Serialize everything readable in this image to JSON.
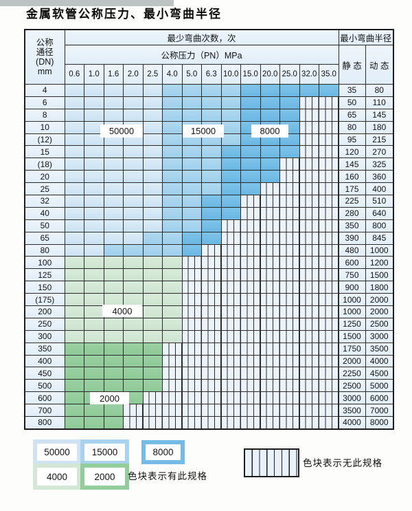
{
  "title": "金属软管公称压力、最小弯曲半径",
  "table": {
    "corner_lines": [
      "公称",
      "通径",
      "(DN)",
      "mm"
    ],
    "bend_cycles_header": "最少弯曲次数，次",
    "pressure_header": "公称压力（PN）MPa",
    "radius_header": "最小弯曲半径",
    "static_header": "静 态",
    "dynamic_header": "动 态",
    "pressures": [
      "0.6",
      "1.0",
      "1.6",
      "2.0",
      "2.5",
      "4.0",
      "5.0",
      "6.3",
      "10.0",
      "15.0",
      "20.0",
      "25.0",
      "32.0",
      "35.0"
    ],
    "rows": [
      {
        "dn": "4",
        "static": "35",
        "dynamic": "80",
        "bands": [
          [
            0,
            4,
            "c50"
          ],
          [
            5,
            8,
            "c15"
          ],
          [
            9,
            13,
            "c8"
          ]
        ],
        "hatch": null
      },
      {
        "dn": "6",
        "static": "50",
        "dynamic": "110",
        "bands": [
          [
            0,
            4,
            "c50"
          ],
          [
            5,
            8,
            "c15"
          ],
          [
            9,
            11,
            "c8"
          ]
        ],
        "hatch": [
          12,
          13
        ]
      },
      {
        "dn": "8",
        "static": "65",
        "dynamic": "145",
        "bands": [
          [
            0,
            4,
            "c50"
          ],
          [
            5,
            8,
            "c15"
          ],
          [
            9,
            11,
            "c8"
          ]
        ],
        "hatch": [
          12,
          13
        ]
      },
      {
        "dn": "10",
        "static": "80",
        "dynamic": "180",
        "bands": [
          [
            0,
            4,
            "c50"
          ],
          [
            5,
            8,
            "c15"
          ],
          [
            9,
            11,
            "c8"
          ]
        ],
        "hatch": [
          12,
          13
        ]
      },
      {
        "dn": "(12)",
        "static": "95",
        "dynamic": "215",
        "bands": [
          [
            0,
            4,
            "c50"
          ],
          [
            5,
            8,
            "c15"
          ],
          [
            9,
            11,
            "c8"
          ]
        ],
        "hatch": [
          12,
          13
        ]
      },
      {
        "dn": "15",
        "static": "120",
        "dynamic": "270",
        "bands": [
          [
            0,
            4,
            "c50"
          ],
          [
            5,
            7,
            "c15"
          ],
          [
            8,
            11,
            "c8"
          ]
        ],
        "hatch": [
          12,
          13
        ]
      },
      {
        "dn": "(18)",
        "static": "145",
        "dynamic": "325",
        "bands": [
          [
            0,
            4,
            "c50"
          ],
          [
            5,
            7,
            "c15"
          ],
          [
            8,
            10,
            "c8"
          ]
        ],
        "hatch": [
          11,
          13
        ]
      },
      {
        "dn": "20",
        "static": "160",
        "dynamic": "360",
        "bands": [
          [
            0,
            4,
            "c50"
          ],
          [
            5,
            7,
            "c15"
          ],
          [
            8,
            10,
            "c8"
          ]
        ],
        "hatch": [
          11,
          13
        ]
      },
      {
        "dn": "25",
        "static": "175",
        "dynamic": "400",
        "bands": [
          [
            0,
            4,
            "c50"
          ],
          [
            5,
            7,
            "c15"
          ],
          [
            8,
            9,
            "c8"
          ]
        ],
        "hatch": [
          10,
          13
        ]
      },
      {
        "dn": "32",
        "static": "225",
        "dynamic": "510",
        "bands": [
          [
            0,
            4,
            "c50"
          ],
          [
            5,
            6,
            "c15"
          ],
          [
            7,
            8,
            "c8"
          ]
        ],
        "hatch": [
          9,
          13
        ]
      },
      {
        "dn": "40",
        "static": "280",
        "dynamic": "640",
        "bands": [
          [
            0,
            4,
            "c50"
          ],
          [
            5,
            6,
            "c15"
          ],
          [
            7,
            8,
            "c8"
          ]
        ],
        "hatch": [
          9,
          13
        ]
      },
      {
        "dn": "50",
        "static": "350",
        "dynamic": "800",
        "bands": [
          [
            0,
            4,
            "c50"
          ],
          [
            5,
            6,
            "c15"
          ],
          [
            7,
            7,
            "c8"
          ]
        ],
        "hatch": [
          8,
          13
        ]
      },
      {
        "dn": "65",
        "static": "390",
        "dynamic": "845",
        "bands": [
          [
            0,
            3,
            "c50"
          ],
          [
            4,
            5,
            "c15"
          ],
          [
            6,
            7,
            "c8"
          ]
        ],
        "hatch": [
          8,
          13
        ]
      },
      {
        "dn": "80",
        "static": "480",
        "dynamic": "1000",
        "bands": [
          [
            0,
            1,
            "c50"
          ],
          [
            2,
            5,
            "c15"
          ],
          [
            6,
            6,
            "c8"
          ]
        ],
        "hatch": [
          7,
          13
        ]
      },
      {
        "dn": "100",
        "static": "600",
        "dynamic": "1200",
        "bands": [
          [
            0,
            5,
            "c40"
          ]
        ],
        "hatch": [
          6,
          13
        ]
      },
      {
        "dn": "125",
        "static": "750",
        "dynamic": "1500",
        "bands": [
          [
            0,
            5,
            "c40"
          ]
        ],
        "hatch": [
          6,
          13
        ]
      },
      {
        "dn": "150",
        "static": "900",
        "dynamic": "1800",
        "bands": [
          [
            0,
            5,
            "c40"
          ]
        ],
        "hatch": [
          6,
          13
        ]
      },
      {
        "dn": "(175)",
        "static": "1000",
        "dynamic": "2000",
        "bands": [
          [
            0,
            5,
            "c40"
          ]
        ],
        "hatch": [
          6,
          13
        ]
      },
      {
        "dn": "200",
        "static": "1000",
        "dynamic": "2000",
        "bands": [
          [
            0,
            5,
            "c40"
          ]
        ],
        "hatch": [
          6,
          13
        ]
      },
      {
        "dn": "250",
        "static": "1250",
        "dynamic": "2500",
        "bands": [
          [
            0,
            5,
            "c40"
          ]
        ],
        "hatch": [
          6,
          13
        ]
      },
      {
        "dn": "300",
        "static": "1500",
        "dynamic": "3000",
        "bands": [
          [
            0,
            5,
            "c40"
          ]
        ],
        "hatch": [
          6,
          13
        ]
      },
      {
        "dn": "350",
        "static": "1750",
        "dynamic": "3500",
        "bands": [
          [
            0,
            4,
            "c20"
          ]
        ],
        "hatch": [
          5,
          13
        ]
      },
      {
        "dn": "400",
        "static": "2000",
        "dynamic": "4000",
        "bands": [
          [
            0,
            4,
            "c20"
          ]
        ],
        "hatch": [
          5,
          13
        ]
      },
      {
        "dn": "450",
        "static": "2250",
        "dynamic": "4500",
        "bands": [
          [
            0,
            4,
            "c20"
          ]
        ],
        "hatch": [
          5,
          13
        ]
      },
      {
        "dn": "500",
        "static": "2500",
        "dynamic": "5000",
        "bands": [
          [
            0,
            4,
            "c20"
          ]
        ],
        "hatch": [
          5,
          13
        ]
      },
      {
        "dn": "600",
        "static": "3000",
        "dynamic": "6000",
        "bands": [
          [
            0,
            3,
            "c20"
          ]
        ],
        "hatch": [
          4,
          13
        ]
      },
      {
        "dn": "700",
        "static": "3500",
        "dynamic": "7000",
        "bands": [
          [
            0,
            2,
            "c20"
          ]
        ],
        "hatch": [
          3,
          13
        ]
      },
      {
        "dn": "800",
        "static": "4000",
        "dynamic": "8000",
        "bands": [
          [
            0,
            2,
            "c20"
          ]
        ],
        "hatch": [
          3,
          13
        ]
      }
    ]
  },
  "overlay_labels": {
    "cycles_50000": "50000",
    "cycles_15000": "15000",
    "cycles_8000": "8000",
    "cycles_4000": "4000",
    "cycles_2000": "2000"
  },
  "legend": {
    "items": [
      {
        "label": "50000",
        "color": "#cfe3f4"
      },
      {
        "label": "15000",
        "color": "#a9d2ee"
      },
      {
        "label": "8000",
        "color": "#74bce5"
      },
      {
        "label": "4000",
        "color": "#d3e7d6"
      },
      {
        "label": "2000",
        "color": "#93cd9b"
      }
    ],
    "has_spec_text": "色块表示有此规格",
    "no_spec_text": "色块表示无此规格"
  },
  "colors": {
    "band_50000": "#cfe3f4",
    "band_15000": "#a9d2ee",
    "band_8000": "#74bce5",
    "band_4000": "#d3e7d6",
    "band_2000": "#93cd9b",
    "hatch_fill": "#ecf3fa",
    "grid_line": "#2b2b2b"
  }
}
